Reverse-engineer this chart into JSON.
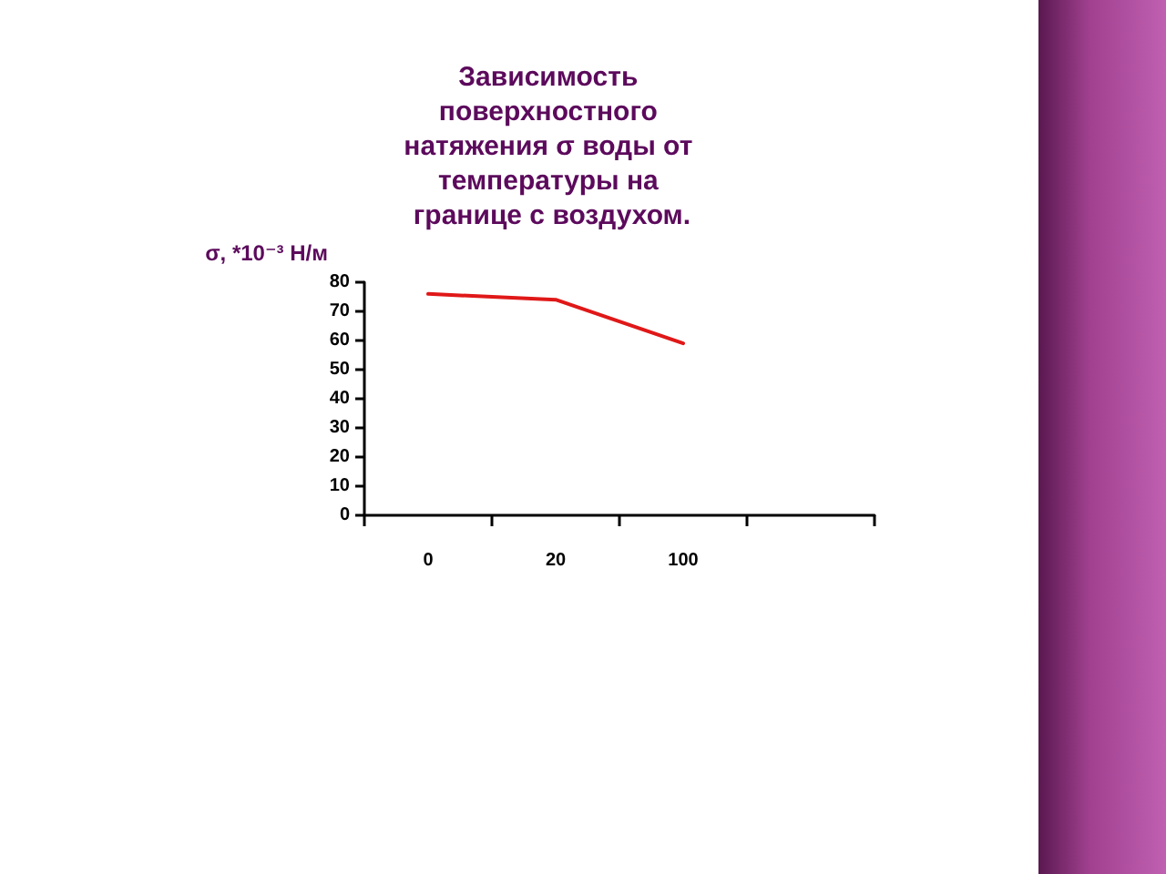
{
  "chart_data": {
    "type": "line",
    "title": "Зависимость поверхностного натяжения σ воды от температуры на границе с воздухом.",
    "ylabel": "σ, *10⁻³ Н/м",
    "categories": [
      "0",
      "20",
      "100",
      null
    ],
    "series": [
      {
        "color": "#e01818",
        "values": [
          76,
          74,
          59,
          null
        ]
      }
    ],
    "ylim": [
      0,
      80
    ],
    "yticks": [
      0,
      10,
      20,
      30,
      40,
      50,
      60,
      70,
      80
    ],
    "grid": false,
    "marker": "none",
    "line_style": "solid"
  }
}
